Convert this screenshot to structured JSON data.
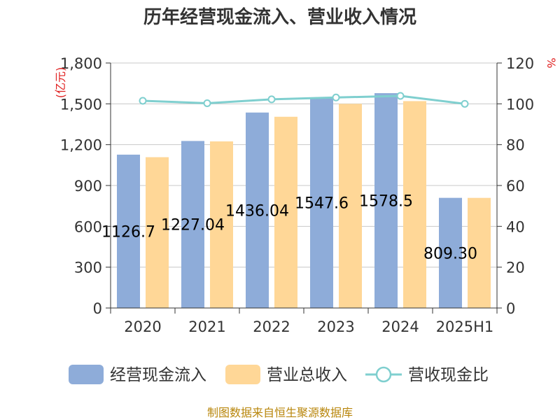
{
  "chart_data": {
    "type": "bar",
    "title": "历年经营现金流入、营业收入情况",
    "categories": [
      "2020",
      "2021",
      "2022",
      "2023",
      "2024",
      "2025H1"
    ],
    "left_axis": {
      "unit": "(亿元)",
      "ylim": [
        0,
        1800
      ],
      "ticks": [
        "0",
        "300",
        "600",
        "900",
        "1,200",
        "1,500",
        "1,800"
      ]
    },
    "right_axis": {
      "unit": "%",
      "ylim": [
        0,
        120
      ],
      "ticks": [
        "0",
        "20",
        "40",
        "60",
        "80",
        "100",
        "120"
      ]
    },
    "series": [
      {
        "name": "经营现金流入",
        "type": "bar",
        "axis": "left",
        "color": "#8eacd9",
        "values": [
          1126.7,
          1227.04,
          1436.04,
          1547.6,
          1578.5,
          809.3
        ],
        "labels": [
          "1126.7",
          "1227.04",
          "1436.04",
          "1547.6",
          "1578.5",
          "809.30"
        ]
      },
      {
        "name": "营业总收入",
        "type": "bar",
        "axis": "left",
        "color": "#ffd797",
        "values": [
          1108,
          1224,
          1405,
          1500,
          1520,
          809
        ]
      },
      {
        "name": "营收现金比",
        "type": "line",
        "axis": "right",
        "color": "#7fcfcf",
        "values": [
          101.5,
          100.3,
          102.2,
          103.1,
          103.9,
          100.0
        ]
      }
    ],
    "grid": true,
    "legend_position": "bottom"
  },
  "source": "制图数据来自恒生聚源数据库"
}
